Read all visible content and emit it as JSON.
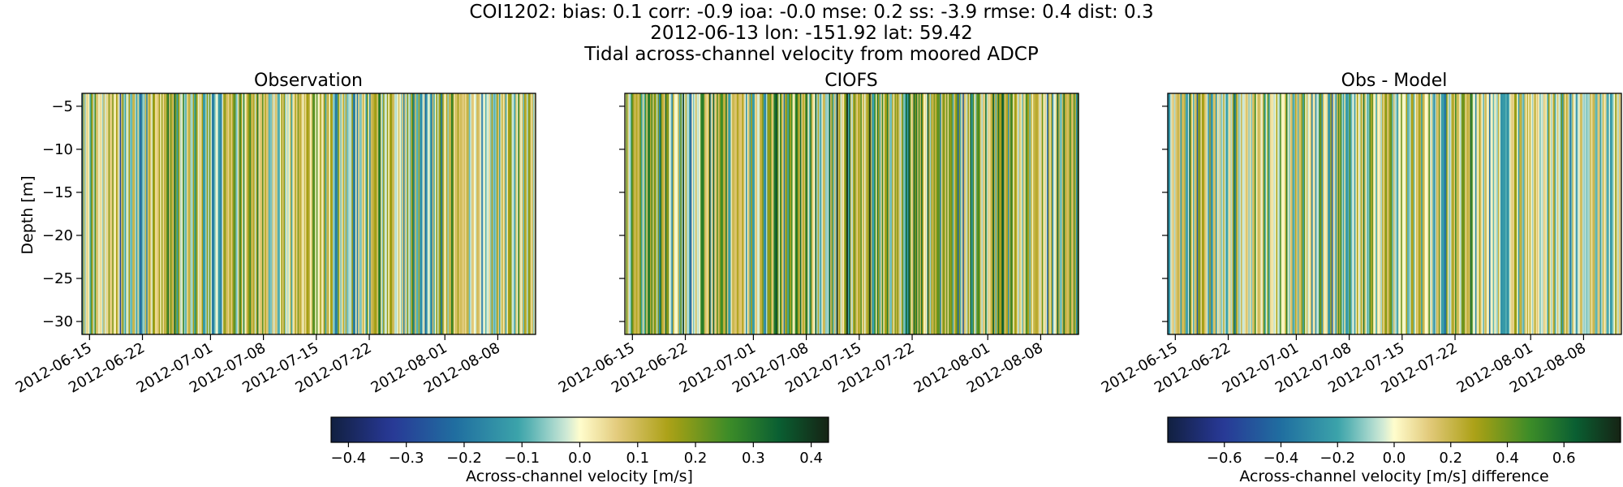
{
  "figure": {
    "title_lines": [
      "COI1202: bias: 0.1  corr: -0.9  ioa: -0.0  mse: 0.2  ss: -3.9  rmse: 0.4  dist: 0.3",
      "2012-06-13 lon: -151.92 lat: 59.42",
      "Tidal across-channel velocity from moored ADCP"
    ]
  },
  "chart_data": [
    {
      "type": "heatmap",
      "title": "Observation",
      "ylabel": "Depth [m]",
      "xlabel": "",
      "x_range": [
        "2012-06-14",
        "2012-08-13"
      ],
      "ylim": [
        -31.5,
        -3.5
      ],
      "y_ticks": [
        -5,
        -10,
        -15,
        -20,
        -25,
        -30
      ],
      "x_ticks": [
        "2012-06-15",
        "2012-06-22",
        "2012-07-01",
        "2012-07-08",
        "2012-07-15",
        "2012-07-22",
        "2012-08-01",
        "2012-08-08"
      ],
      "colormap": "delta",
      "vlim": [
        -0.43,
        0.43
      ],
      "colorbar": "obsmodel",
      "seed": 11,
      "bias": 0.04,
      "amp": 0.2
    },
    {
      "type": "heatmap",
      "title": "CIOFS",
      "ylabel": "",
      "xlabel": "",
      "x_range": [
        "2012-06-14",
        "2012-08-13"
      ],
      "ylim": [
        -31.5,
        -3.5
      ],
      "y_ticks": [
        -5,
        -10,
        -15,
        -20,
        -25,
        -30
      ],
      "x_ticks": [
        "2012-06-15",
        "2012-06-22",
        "2012-07-01",
        "2012-07-08",
        "2012-07-15",
        "2012-07-22",
        "2012-08-01",
        "2012-08-08"
      ],
      "colormap": "delta",
      "vlim": [
        -0.43,
        0.43
      ],
      "colorbar": "obsmodel",
      "seed": 23,
      "bias": 0.1,
      "amp": 0.25
    },
    {
      "type": "heatmap",
      "title": "Obs - Model",
      "ylabel": "",
      "xlabel": "",
      "x_range": [
        "2012-06-14",
        "2012-08-13"
      ],
      "ylim": [
        -31.5,
        -3.5
      ],
      "y_ticks": [
        -5,
        -10,
        -15,
        -20,
        -25,
        -30
      ],
      "x_ticks": [
        "2012-06-15",
        "2012-06-22",
        "2012-07-01",
        "2012-07-08",
        "2012-07-15",
        "2012-07-22",
        "2012-08-01",
        "2012-08-08"
      ],
      "colormap": "delta",
      "vlim": [
        -0.8,
        0.8
      ],
      "colorbar": "diff",
      "seed": 37,
      "bias": 0.05,
      "amp": 0.4
    }
  ],
  "colorbars": {
    "obsmodel": {
      "label": "Across-channel velocity [m/s]",
      "vlim": [
        -0.43,
        0.43
      ],
      "ticks": [
        "-0.4",
        "-0.3",
        "-0.2",
        "-0.1",
        "0.0",
        "0.1",
        "0.2",
        "0.3",
        "0.4"
      ]
    },
    "diff": {
      "label": "Across-channel velocity [m/s] difference",
      "vlim": [
        -0.8,
        0.8
      ],
      "ticks": [
        "-0.6",
        "-0.4",
        "-0.2",
        "0.0",
        "0.2",
        "0.4",
        "0.6"
      ]
    }
  }
}
